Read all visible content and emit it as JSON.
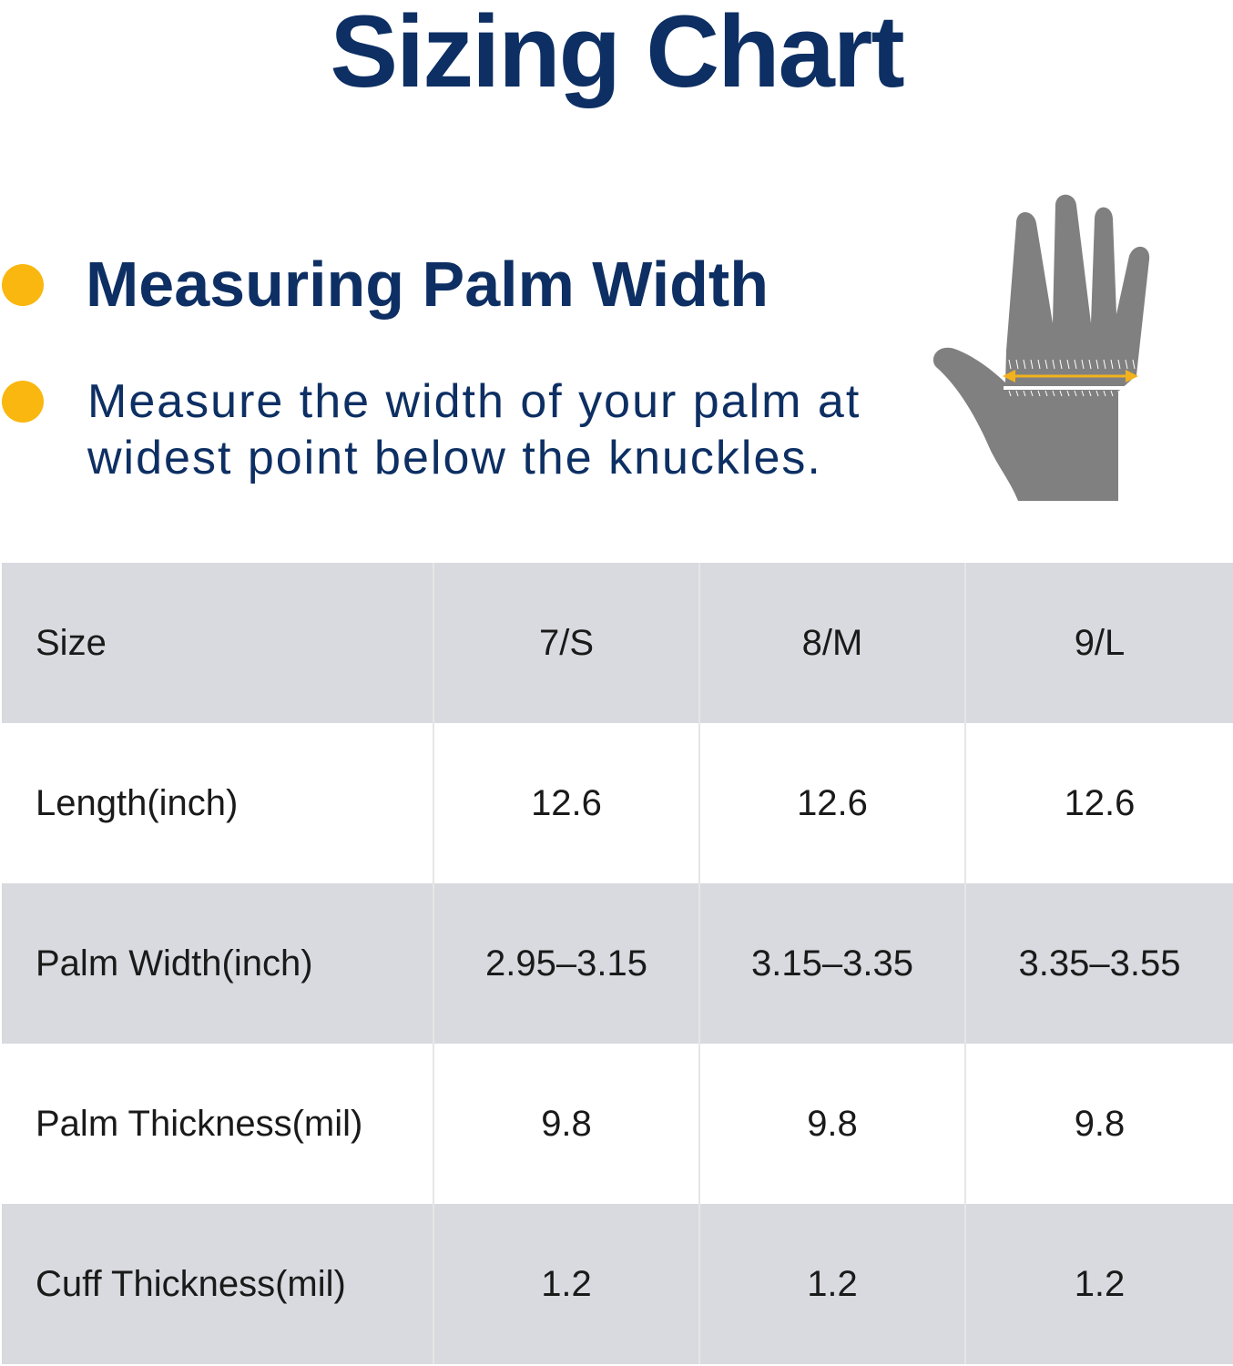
{
  "colors": {
    "navy": "#0d2f63",
    "bullet_yellow": "#f9b70f",
    "row_shade": "#d9dadf",
    "hand_gray": "#808080",
    "arrow_orange": "#f2b21c"
  },
  "title": "Sizing Chart",
  "heading": "Measuring Palm Width",
  "description": {
    "line1": "Measure the width of your palm at",
    "line2": "widest point below the knuckles."
  },
  "illustration": {
    "icon": "hand-measure-icon"
  },
  "table": {
    "rows": [
      {
        "label": "Size",
        "values": [
          "7/S",
          "8/M",
          "9/L"
        ]
      },
      {
        "label": "Length(inch)",
        "values": [
          "12.6",
          "12.6",
          "12.6"
        ]
      },
      {
        "label": "Palm Width(inch)",
        "values": [
          "2.95–3.15",
          "3.15–3.35",
          "3.35–3.55"
        ]
      },
      {
        "label": "Palm Thickness(mil)",
        "values": [
          "9.8",
          "9.8",
          "9.8"
        ]
      },
      {
        "label": "Cuff Thickness(mil)",
        "values": [
          "1.2",
          "1.2",
          "1.2"
        ]
      }
    ]
  }
}
